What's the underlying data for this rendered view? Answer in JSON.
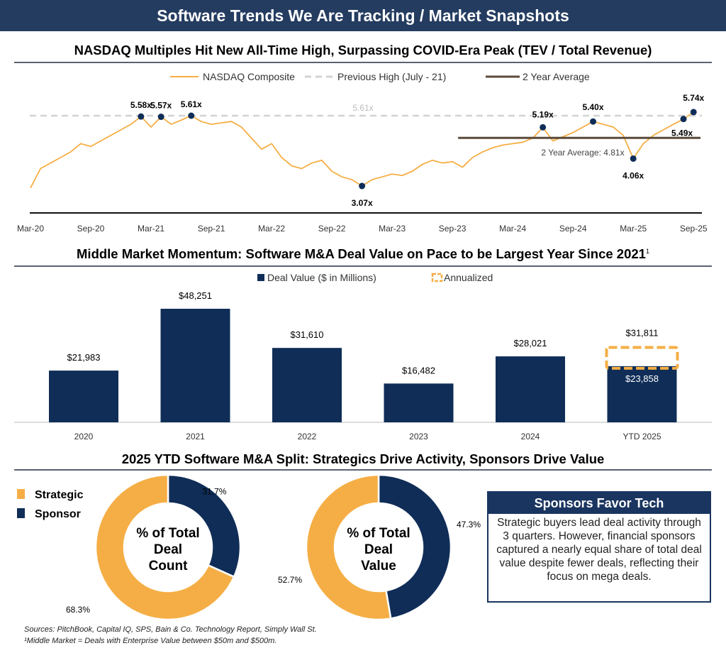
{
  "header": {
    "title": "Software Trends We Are Tracking / Market Snapshots"
  },
  "colors": {
    "navy": "#0f2d57",
    "orange": "#f5ae45",
    "gray_dash": "#d3d3d3",
    "avg": "#5a4a3a",
    "title_bar": "#243c60"
  },
  "chart_data": [
    {
      "type": "line",
      "title": "NASDAQ Multiples Hit New All-Time High, Surpassing COVID-Era Peak (TEV / Total Revenue)",
      "legend": [
        "NASDAQ Composite",
        "Previous High (July - 21)",
        "2 Year Average"
      ],
      "legend_placement": "top",
      "x_ticks": [
        "Mar-20",
        "Sep-20",
        "Mar-21",
        "Sep-21",
        "Mar-22",
        "Sep-22",
        "Mar-23",
        "Sep-23",
        "Mar-24",
        "Sep-24",
        "Mar-25",
        "Sep-25"
      ],
      "ylim": [
        2.1,
        6.2
      ],
      "grid": false,
      "series": [
        {
          "name": "NASDAQ Composite",
          "points": [
            [
              "2020-03",
              3.0
            ],
            [
              "2020-04",
              3.7
            ],
            [
              "2020-05",
              3.9
            ],
            [
              "2020-06",
              4.1
            ],
            [
              "2020-07",
              4.3
            ],
            [
              "2020-08",
              4.6
            ],
            [
              "2020-09",
              4.5
            ],
            [
              "2020-10",
              4.7
            ],
            [
              "2020-11",
              4.9
            ],
            [
              "2020-12",
              5.1
            ],
            [
              "2021-01",
              5.3
            ],
            [
              "2021-02",
              5.58
            ],
            [
              "2021-03",
              5.2
            ],
            [
              "2021-04",
              5.57
            ],
            [
              "2021-05",
              5.3
            ],
            [
              "2021-06",
              5.45
            ],
            [
              "2021-07",
              5.61
            ],
            [
              "2021-08",
              5.4
            ],
            [
              "2021-09",
              5.3
            ],
            [
              "2021-10",
              5.35
            ],
            [
              "2021-11",
              5.4
            ],
            [
              "2021-12",
              5.2
            ],
            [
              "2022-01",
              4.8
            ],
            [
              "2022-02",
              4.4
            ],
            [
              "2022-03",
              4.6
            ],
            [
              "2022-04",
              4.1
            ],
            [
              "2022-05",
              3.8
            ],
            [
              "2022-06",
              3.7
            ],
            [
              "2022-07",
              3.9
            ],
            [
              "2022-08",
              4.0
            ],
            [
              "2022-09",
              3.6
            ],
            [
              "2022-10",
              3.4
            ],
            [
              "2022-11",
              3.3
            ],
            [
              "2022-12",
              3.07
            ],
            [
              "2023-01",
              3.3
            ],
            [
              "2023-02",
              3.4
            ],
            [
              "2023-03",
              3.5
            ],
            [
              "2023-04",
              3.45
            ],
            [
              "2023-05",
              3.6
            ],
            [
              "2023-06",
              3.85
            ],
            [
              "2023-07",
              4.0
            ],
            [
              "2023-08",
              3.9
            ],
            [
              "2023-09",
              3.95
            ],
            [
              "2023-10",
              3.75
            ],
            [
              "2023-11",
              4.1
            ],
            [
              "2023-12",
              4.3
            ],
            [
              "2024-01",
              4.45
            ],
            [
              "2024-02",
              4.55
            ],
            [
              "2024-03",
              4.6
            ],
            [
              "2024-04",
              4.65
            ],
            [
              "2024-05",
              4.8
            ],
            [
              "2024-06",
              5.19
            ],
            [
              "2024-07",
              4.7
            ],
            [
              "2024-08",
              4.85
            ],
            [
              "2024-09",
              5.0
            ],
            [
              "2024-10",
              5.2
            ],
            [
              "2024-11",
              5.4
            ],
            [
              "2024-12",
              5.3
            ],
            [
              "2025-01",
              5.2
            ],
            [
              "2025-02",
              4.9
            ],
            [
              "2025-03",
              4.06
            ],
            [
              "2025-04",
              4.6
            ],
            [
              "2025-05",
              4.9
            ],
            [
              "2025-06",
              5.1
            ],
            [
              "2025-07",
              5.3
            ],
            [
              "2025-08",
              5.49
            ],
            [
              "2025-09",
              5.74
            ]
          ]
        }
      ],
      "reference_lines": [
        {
          "name": "Previous High (July - 21)",
          "value": 5.61,
          "label": "5.61x"
        },
        {
          "name": "2 Year Average",
          "value": 4.81,
          "from": "2023-09",
          "label": "2 Year Average: 4.81x"
        }
      ],
      "annotations": [
        [
          "2021-02",
          "5.58x"
        ],
        [
          "2021-04",
          "5.57x"
        ],
        [
          "2021-07",
          "5.61x"
        ],
        [
          "2022-12",
          "3.07x"
        ],
        [
          "2024-06",
          "5.19x"
        ],
        [
          "2024-11",
          "5.40x"
        ],
        [
          "2025-03",
          "4.06x"
        ],
        [
          "2025-08",
          "5.49x"
        ],
        [
          "2025-09",
          "5.74x"
        ]
      ]
    },
    {
      "type": "bar",
      "title": "Middle Market Momentum: Software M&A Deal Value on Pace to be Largest Year Since 2021",
      "title_footnote": "1",
      "legend": [
        "Deal Value ($ in Millions)",
        "Annualized"
      ],
      "categories": [
        "2020",
        "2021",
        "2022",
        "2023",
        "2024",
        "YTD 2025"
      ],
      "values": [
        21983,
        48251,
        31610,
        16482,
        28021,
        23858
      ],
      "labels": [
        "$21,983",
        "$48,251",
        "$31,610",
        "$16,482",
        "$28,021",
        "$23,858"
      ],
      "annualized": {
        "category": "YTD 2025",
        "value": 31811,
        "label": "$31,811"
      },
      "ylim": [
        0,
        50000
      ]
    },
    {
      "type": "pie",
      "title": "2025 YTD Software M&A Split: Strategics Drive Activity, Sponsors Drive Value",
      "legend": [
        "Strategic",
        "Sponsor"
      ],
      "charts": [
        {
          "center_label": [
            "% of Total",
            "Deal",
            "Count"
          ],
          "slices": [
            {
              "name": "Sponsor",
              "value": 31.7,
              "label": "31.7%"
            },
            {
              "name": "Strategic",
              "value": 68.3,
              "label": "68.3%"
            }
          ]
        },
        {
          "center_label": [
            "% of Total",
            "Deal",
            "Value"
          ],
          "slices": [
            {
              "name": "Sponsor",
              "value": 47.3,
              "label": "47.3%"
            },
            {
              "name": "Strategic",
              "value": 52.7,
              "label": "52.7%"
            }
          ]
        }
      ]
    }
  ],
  "callout": {
    "title": "Sponsors Favor Tech",
    "body": "Strategic buyers lead deal activity through 3 quarters. However, financial sponsors captured a nearly equal share of total deal value despite fewer deals, reflecting their focus on mega deals."
  },
  "footer": {
    "sources": "Sources: PitchBook, Capital IQ, SPS, Bain & Co. Technology Report, Simply Wall St.",
    "note": "¹Middle Market = Deals with Enterprise Value between $50m and $500m."
  }
}
